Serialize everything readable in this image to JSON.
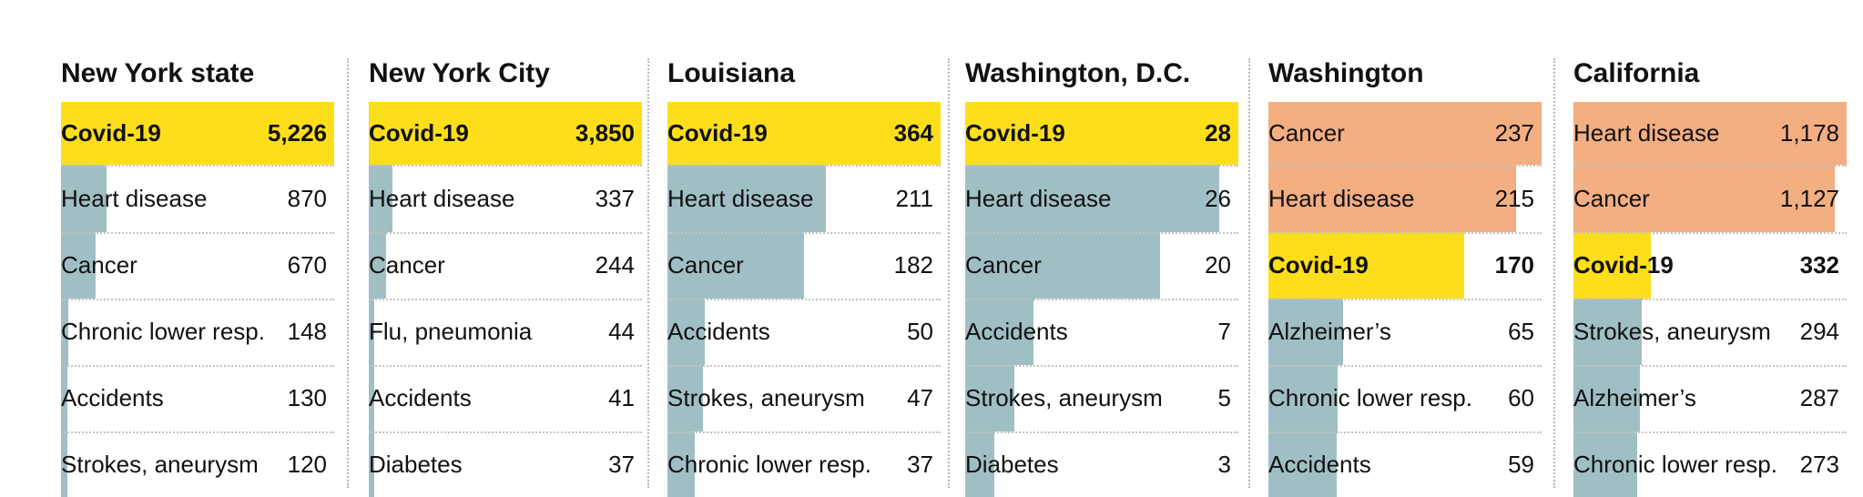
{
  "colors": {
    "covid": "#fdde1b",
    "above_covid": "#f3ae82",
    "other": "#a0bfc4"
  },
  "chart_data": {
    "type": "bar",
    "orientation": "horizontal",
    "panels": [
      {
        "title": "New York state",
        "rows": [
          {
            "label": "Covid-19",
            "value": 5226,
            "display": "5,226",
            "highlight": "covid"
          },
          {
            "label": "Heart disease",
            "value": 870,
            "display": "870",
            "highlight": "other"
          },
          {
            "label": "Cancer",
            "value": 670,
            "display": "670",
            "highlight": "other"
          },
          {
            "label": "Chronic lower resp.",
            "value": 148,
            "display": "148",
            "highlight": "other"
          },
          {
            "label": "Accidents",
            "value": 130,
            "display": "130",
            "highlight": "other"
          },
          {
            "label": "Strokes, aneurysm",
            "value": 120,
            "display": "120",
            "highlight": "other"
          }
        ]
      },
      {
        "title": "New York City",
        "rows": [
          {
            "label": "Covid-19",
            "value": 3850,
            "display": "3,850",
            "highlight": "covid"
          },
          {
            "label": "Heart disease",
            "value": 337,
            "display": "337",
            "highlight": "other"
          },
          {
            "label": "Cancer",
            "value": 244,
            "display": "244",
            "highlight": "other"
          },
          {
            "label": "Flu, pneumonia",
            "value": 44,
            "display": "44",
            "highlight": "other"
          },
          {
            "label": "Accidents",
            "value": 41,
            "display": "41",
            "highlight": "other"
          },
          {
            "label": "Diabetes",
            "value": 37,
            "display": "37",
            "highlight": "other"
          }
        ]
      },
      {
        "title": "Louisiana",
        "rows": [
          {
            "label": "Covid-19",
            "value": 364,
            "display": "364",
            "highlight": "covid"
          },
          {
            "label": "Heart disease",
            "value": 211,
            "display": "211",
            "highlight": "other"
          },
          {
            "label": "Cancer",
            "value": 182,
            "display": "182",
            "highlight": "other"
          },
          {
            "label": "Accidents",
            "value": 50,
            "display": "50",
            "highlight": "other"
          },
          {
            "label": "Strokes, aneurysm",
            "value": 47,
            "display": "47",
            "highlight": "other"
          },
          {
            "label": "Chronic lower resp.",
            "value": 37,
            "display": "37",
            "highlight": "other"
          }
        ]
      },
      {
        "title": "Washington, D.C.",
        "rows": [
          {
            "label": "Covid-19",
            "value": 28,
            "display": "28",
            "highlight": "covid"
          },
          {
            "label": "Heart disease",
            "value": 26,
            "display": "26",
            "highlight": "other"
          },
          {
            "label": "Cancer",
            "value": 20,
            "display": "20",
            "highlight": "other"
          },
          {
            "label": "Accidents",
            "value": 7,
            "display": "7",
            "highlight": "other"
          },
          {
            "label": "Strokes, aneurysm",
            "value": 5,
            "display": "5",
            "highlight": "other"
          },
          {
            "label": "Diabetes",
            "value": 3,
            "display": "3",
            "highlight": "other"
          }
        ]
      },
      {
        "title": "Washington",
        "rows": [
          {
            "label": "Cancer",
            "value": 237,
            "display": "237",
            "highlight": "above_covid"
          },
          {
            "label": "Heart disease",
            "value": 215,
            "display": "215",
            "highlight": "above_covid"
          },
          {
            "label": "Covid-19",
            "value": 170,
            "display": "170",
            "highlight": "covid"
          },
          {
            "label": "Alzheimer’s",
            "value": 65,
            "display": "65",
            "highlight": "other"
          },
          {
            "label": "Chronic lower resp.",
            "value": 60,
            "display": "60",
            "highlight": "other"
          },
          {
            "label": "Accidents",
            "value": 59,
            "display": "59",
            "highlight": "other"
          }
        ]
      },
      {
        "title": "California",
        "rows": [
          {
            "label": "Heart disease",
            "value": 1178,
            "display": "1,178",
            "highlight": "above_covid"
          },
          {
            "label": "Cancer",
            "value": 1127,
            "display": "1,127",
            "highlight": "above_covid"
          },
          {
            "label": "Covid-19",
            "value": 332,
            "display": "332",
            "highlight": "covid"
          },
          {
            "label": "Strokes, aneurysm",
            "value": 294,
            "display": "294",
            "highlight": "other"
          },
          {
            "label": "Alzheimer’s",
            "value": 287,
            "display": "287",
            "highlight": "other"
          },
          {
            "label": "Chronic lower resp.",
            "value": 273,
            "display": "273",
            "highlight": "other"
          }
        ]
      }
    ]
  }
}
